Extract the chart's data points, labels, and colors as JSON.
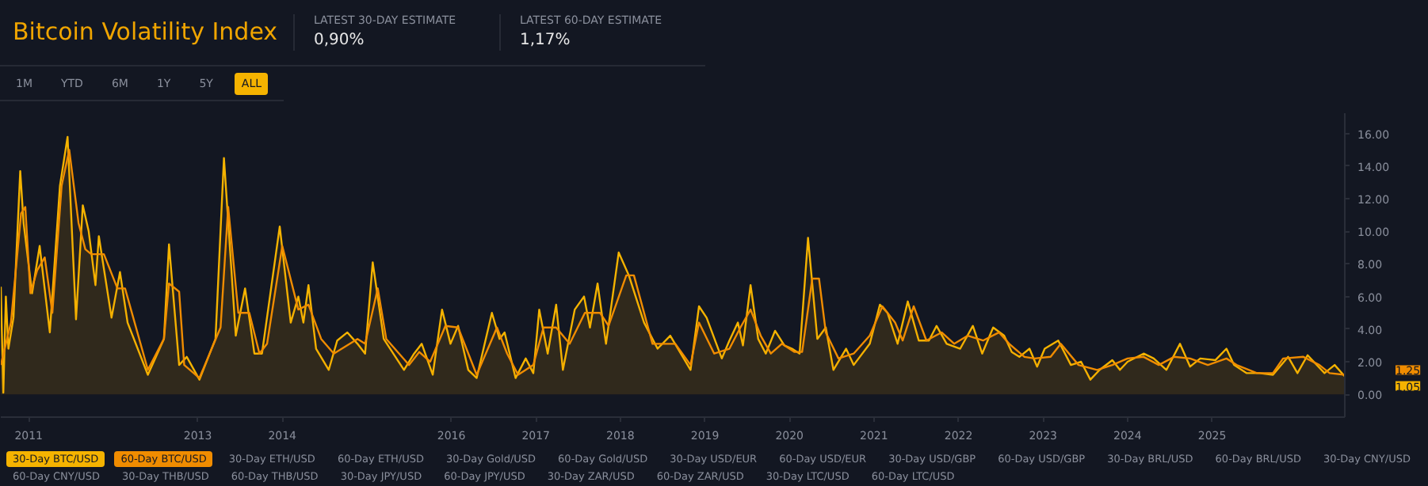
{
  "chart_data": {
    "type": "area",
    "title": "Bitcoin Volatility Index",
    "annotations": [
      "LATEST 30-DAY ESTIMATE",
      "0,90%",
      "LATEST 60-DAY ESTIMATE",
      "1,17%",
      "1M",
      "YTD",
      "6M",
      "1Y",
      "5Y",
      "ALL",
      "30-Day ETH/USD",
      "60-Day ETH/USD",
      "30-Day Gold/USD",
      "60-Day Gold/USD",
      "30-Day USD/EUR",
      "60-Day USD/EUR",
      "30-Day USD/GBP",
      "60-Day USD/GBP",
      "30-Day BRL/USD",
      "60-Day BRL/USD",
      "30-Day CNY/USD",
      "60-Day CNY/USD",
      "30-Day THB/USD",
      "60-Day THB/USD",
      "30-Day JPY/USD",
      "60-Day JPY/USD",
      "30-Day ZAR/USD",
      "60-Day ZAR/USD",
      "30-Day LTC/USD",
      "60-Day LTC/USD",
      "1.25",
      "1.05"
    ],
    "series": [
      {
        "name": "30-Day BTC/USD",
        "color": "#f5b300",
        "x": [
          2010.67,
          2010.7,
          2010.73,
          2010.76,
          2010.82,
          2010.9,
          2010.94,
          2011.04,
          2011.13,
          2011.25,
          2011.37,
          2011.46,
          2011.56,
          2011.64,
          2011.71,
          2011.79,
          2011.83,
          2011.98,
          2012.08,
          2012.17,
          2012.41,
          2012.6,
          2012.66,
          2012.78,
          2012.87,
          2013.02,
          2013.21,
          2013.31,
          2013.45,
          2013.56,
          2013.67,
          2013.76,
          2013.97,
          2014.1,
          2014.19,
          2014.25,
          2014.31,
          2014.4,
          2014.55,
          2014.65,
          2014.77,
          2014.89,
          2014.98,
          2015.07,
          2015.2,
          2015.44,
          2015.56,
          2015.65,
          2015.78,
          2015.89,
          2015.99,
          2016.08,
          2016.2,
          2016.3,
          2016.48,
          2016.57,
          2016.63,
          2016.76,
          2016.88,
          2016.97,
          2017.04,
          2017.14,
          2017.24,
          2017.32,
          2017.46,
          2017.57,
          2017.64,
          2017.73,
          2017.83,
          2017.98,
          2018.1,
          2018.28,
          2018.44,
          2018.59,
          2018.83,
          2018.93,
          2019.02,
          2019.2,
          2019.29,
          2019.39,
          2019.45,
          2019.54,
          2019.63,
          2019.72,
          2019.83,
          2019.94,
          2020.03,
          2020.12,
          2020.22,
          2020.33,
          2020.43,
          2020.52,
          2020.67,
          2020.76,
          2020.95,
          2021.07,
          2021.16,
          2021.28,
          2021.4,
          2021.53,
          2021.65,
          2021.74,
          2021.86,
          2022.02,
          2022.17,
          2022.28,
          2022.41,
          2022.54,
          2022.63,
          2022.72,
          2022.84,
          2022.93,
          2023.02,
          2023.18,
          2023.33,
          2023.45,
          2023.56,
          2023.67,
          2023.82,
          2023.91,
          2024.0,
          2024.19,
          2024.31,
          2024.46,
          2024.62,
          2024.74,
          2024.86,
          2025.04,
          2025.17,
          2025.26,
          2025.41,
          2025.56,
          2025.72,
          2025.9,
          2026.01,
          2026.13,
          2026.33,
          2026.45,
          2026.57
        ],
        "values": [
          6.6,
          0.1,
          6.0,
          2.8,
          4.7,
          13.7,
          10.5,
          6.2,
          9.1,
          3.8,
          12.8,
          15.8,
          4.6,
          11.6,
          10.0,
          6.7,
          9.7,
          4.7,
          7.5,
          4.4,
          1.2,
          3.4,
          9.2,
          1.8,
          2.3,
          0.9,
          3.4,
          14.5,
          3.6,
          6.5,
          2.5,
          2.5,
          10.3,
          4.4,
          6.0,
          4.4,
          6.7,
          2.8,
          1.5,
          3.3,
          3.8,
          3.1,
          2.5,
          8.1,
          3.4,
          1.5,
          2.5,
          3.1,
          1.2,
          5.2,
          3.1,
          4.2,
          1.5,
          1.0,
          5.0,
          3.4,
          3.8,
          1.0,
          2.2,
          1.3,
          5.2,
          2.5,
          5.5,
          1.5,
          5.2,
          6.0,
          4.1,
          6.8,
          3.1,
          8.7,
          7.3,
          4.4,
          2.8,
          3.6,
          1.5,
          5.4,
          4.7,
          2.2,
          3.3,
          4.4,
          3.0,
          6.7,
          3.4,
          2.5,
          3.9,
          3.0,
          2.8,
          2.5,
          9.6,
          3.4,
          4.1,
          1.5,
          2.8,
          1.8,
          3.1,
          5.5,
          5.0,
          3.1,
          5.7,
          3.3,
          3.3,
          4.2,
          3.1,
          2.8,
          4.2,
          2.5,
          4.1,
          3.6,
          2.6,
          2.3,
          2.8,
          1.7,
          2.8,
          3.3,
          1.8,
          2.0,
          0.9,
          1.5,
          2.1,
          1.5,
          2.0,
          2.5,
          2.2,
          1.5,
          3.1,
          1.7,
          2.2,
          2.1,
          2.8,
          1.8,
          1.3,
          1.3,
          1.2,
          2.3,
          1.3,
          2.4,
          1.3,
          1.8,
          1.1
        ]
      },
      {
        "name": "60-Day BTC/USD",
        "color": "#f08c00",
        "x": [
          2010.67,
          2010.79,
          2010.91,
          2010.96,
          2011.02,
          2011.1,
          2011.19,
          2011.28,
          2011.39,
          2011.48,
          2011.59,
          2011.67,
          2011.74,
          2011.89,
          2012.05,
          2012.14,
          2012.41,
          2012.6,
          2012.66,
          2012.78,
          2012.84,
          2013.02,
          2013.27,
          2013.36,
          2013.48,
          2013.61,
          2013.73,
          2013.82,
          2014.0,
          2014.19,
          2014.31,
          2014.46,
          2014.61,
          2014.89,
          2014.98,
          2015.13,
          2015.23,
          2015.5,
          2015.62,
          2015.75,
          2015.93,
          2016.08,
          2016.3,
          2016.54,
          2016.66,
          2016.79,
          2016.97,
          2017.09,
          2017.24,
          2017.4,
          2017.58,
          2017.76,
          2017.86,
          2018.07,
          2018.16,
          2018.38,
          2018.5,
          2018.65,
          2018.83,
          2018.93,
          2019.11,
          2019.29,
          2019.42,
          2019.54,
          2019.66,
          2019.78,
          2019.91,
          2020.06,
          2020.15,
          2020.27,
          2020.35,
          2020.43,
          2020.58,
          2020.76,
          2020.95,
          2021.1,
          2021.25,
          2021.34,
          2021.47,
          2021.62,
          2021.8,
          2021.95,
          2022.11,
          2022.29,
          2022.48,
          2022.6,
          2022.78,
          2022.9,
          2023.09,
          2023.21,
          2023.42,
          2023.64,
          2023.82,
          2024.0,
          2024.19,
          2024.37,
          2024.55,
          2024.74,
          2024.95,
          2025.17,
          2025.29,
          2025.53,
          2025.72,
          2025.84,
          2026.08,
          2026.27,
          2026.39,
          2026.57
        ],
        "values": [
          1.8,
          4.4,
          11.1,
          11.5,
          6.2,
          7.6,
          8.4,
          5.0,
          12.8,
          15.0,
          10.5,
          8.9,
          8.6,
          8.6,
          6.5,
          6.5,
          1.5,
          3.4,
          6.8,
          6.3,
          1.8,
          1.0,
          4.1,
          11.5,
          5.0,
          5.0,
          2.5,
          3.1,
          9.1,
          5.2,
          5.5,
          3.4,
          2.5,
          3.4,
          3.1,
          6.5,
          3.4,
          1.8,
          2.6,
          2.0,
          4.2,
          4.1,
          1.2,
          4.1,
          2.5,
          1.2,
          1.8,
          4.1,
          4.1,
          3.1,
          5.0,
          5.0,
          4.2,
          7.3,
          7.3,
          3.1,
          3.1,
          3.1,
          1.8,
          4.4,
          2.5,
          2.8,
          4.1,
          5.2,
          3.6,
          2.5,
          3.1,
          2.6,
          2.6,
          7.1,
          7.1,
          3.8,
          2.2,
          2.5,
          3.6,
          5.4,
          4.4,
          3.3,
          5.4,
          3.3,
          3.8,
          3.1,
          3.6,
          3.3,
          3.8,
          3.1,
          2.3,
          2.2,
          2.3,
          3.1,
          1.8,
          1.5,
          1.8,
          2.2,
          2.3,
          1.8,
          2.3,
          2.2,
          1.8,
          2.2,
          1.8,
          1.3,
          1.3,
          2.2,
          2.3,
          1.8,
          1.3,
          1.2
        ]
      }
    ],
    "xlim": [
      2010.67,
      2026.57
    ],
    "ylim": [
      -1.4,
      17.25
    ],
    "xticks": [
      2011,
      2013,
      2014,
      2016,
      2017,
      2018,
      2019,
      2020,
      2021,
      2022,
      2023,
      2024,
      2025
    ],
    "yticks": [
      {
        "value": 0,
        "label": "0.00"
      },
      {
        "value": 2,
        "label": "2.00"
      },
      {
        "value": 4,
        "label": "4.00"
      },
      {
        "value": 6,
        "label": "6.00"
      },
      {
        "value": 8,
        "label": "8.00"
      },
      {
        "value": 10,
        "label": "10.00"
      },
      {
        "value": 12,
        "label": "12.00"
      },
      {
        "value": 14,
        "label": "14.00"
      },
      {
        "value": 16,
        "label": "16.00"
      }
    ],
    "legend": "bottom"
  }
}
